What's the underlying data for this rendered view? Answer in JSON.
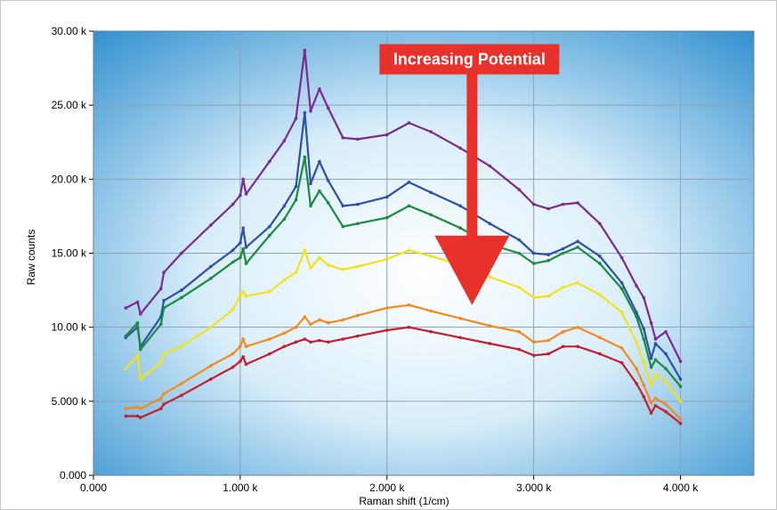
{
  "chart_data": {
    "type": "line",
    "xlabel": "Raman shift (1/cm)",
    "ylabel": "Raw counts",
    "xlim": [
      0,
      4500
    ],
    "ylim": [
      0,
      30000
    ],
    "x_ticks": [
      0,
      1000,
      2000,
      3000,
      4000
    ],
    "x_tick_labels": [
      "0.000",
      "1.000 k",
      "2.000 k",
      "3.000 k",
      "4.000 k"
    ],
    "y_ticks": [
      0,
      5000,
      10000,
      15000,
      20000,
      25000,
      30000
    ],
    "y_tick_labels": [
      "0.000",
      "5.000 k",
      "10.00 k",
      "15.00 k",
      "20.00 k",
      "25.00 k",
      "30.00 k"
    ],
    "grid": true,
    "legend": "none",
    "annotation": {
      "text": "Increasing Potential",
      "arrow_x": 2580,
      "arrow_y_start": 27200,
      "arrow_y_end": 11500,
      "color": "#e8312a"
    },
    "x": [
      220,
      300,
      320,
      460,
      480,
      600,
      800,
      950,
      1000,
      1020,
      1040,
      1200,
      1300,
      1380,
      1440,
      1480,
      1540,
      1600,
      1700,
      1800,
      2000,
      2150,
      2300,
      2500,
      2700,
      2900,
      3000,
      3100,
      3200,
      3300,
      3450,
      3600,
      3700,
      3750,
      3800,
      3830,
      3900,
      4000
    ],
    "series": [
      {
        "color": "#7b2a8e",
        "values": [
          11300,
          11700,
          10900,
          12600,
          13700,
          15000,
          16900,
          18300,
          18900,
          20000,
          19000,
          21200,
          22600,
          24100,
          28700,
          24600,
          26100,
          24800,
          22800,
          22700,
          23000,
          23800,
          23200,
          22100,
          20900,
          19300,
          18300,
          18000,
          18300,
          18400,
          17000,
          14700,
          12800,
          12000,
          10300,
          9200,
          9700,
          7700
        ]
      },
      {
        "color": "#2e4fa8",
        "values": [
          9300,
          10000,
          8700,
          10700,
          11800,
          12500,
          14100,
          15200,
          15700,
          16700,
          15400,
          16800,
          18200,
          19500,
          24500,
          19700,
          21200,
          19900,
          18200,
          18300,
          18800,
          19800,
          19100,
          18200,
          17000,
          15900,
          15000,
          14900,
          15300,
          15800,
          14800,
          13000,
          11000,
          9900,
          7900,
          8900,
          8200,
          6500
        ]
      },
      {
        "color": "#1a8b3b",
        "values": [
          9400,
          10300,
          8500,
          10200,
          11300,
          12000,
          13300,
          14400,
          14700,
          15300,
          14300,
          16200,
          17300,
          18600,
          21500,
          18200,
          19200,
          18400,
          16800,
          17000,
          17400,
          18200,
          17600,
          16700,
          15600,
          15000,
          14300,
          14500,
          15000,
          15400,
          14300,
          12600,
          10700,
          9200,
          7300,
          7800,
          7200,
          6000
        ]
      },
      {
        "color": "#f2e21b",
        "values": [
          7200,
          8100,
          6500,
          7600,
          8200,
          8700,
          10000,
          11200,
          12100,
          12400,
          12100,
          12400,
          13200,
          13700,
          15200,
          14000,
          14700,
          14200,
          13900,
          14100,
          14600,
          15200,
          14800,
          14200,
          13400,
          12700,
          12000,
          12100,
          12700,
          13000,
          12200,
          11000,
          9000,
          7600,
          6100,
          6800,
          6300,
          5000
        ]
      },
      {
        "color": "#f28a1d",
        "values": [
          4500,
          4600,
          4500,
          5200,
          5500,
          6200,
          7400,
          8200,
          8700,
          9200,
          8700,
          9200,
          9600,
          10000,
          10700,
          10200,
          10500,
          10300,
          10500,
          10800,
          11300,
          11500,
          11100,
          10600,
          10100,
          9700,
          9000,
          9100,
          9700,
          10000,
          9300,
          8600,
          7200,
          6100,
          4900,
          5200,
          4800,
          3800
        ]
      },
      {
        "color": "#c61d2c",
        "values": [
          4000,
          4000,
          3900,
          4500,
          4800,
          5400,
          6500,
          7300,
          7700,
          8000,
          7500,
          8200,
          8700,
          9000,
          9200,
          9000,
          9100,
          9000,
          9200,
          9400,
          9800,
          10000,
          9700,
          9300,
          8900,
          8500,
          8100,
          8200,
          8700,
          8700,
          8200,
          7600,
          6200,
          5300,
          4200,
          4700,
          4300,
          3500
        ]
      }
    ]
  }
}
